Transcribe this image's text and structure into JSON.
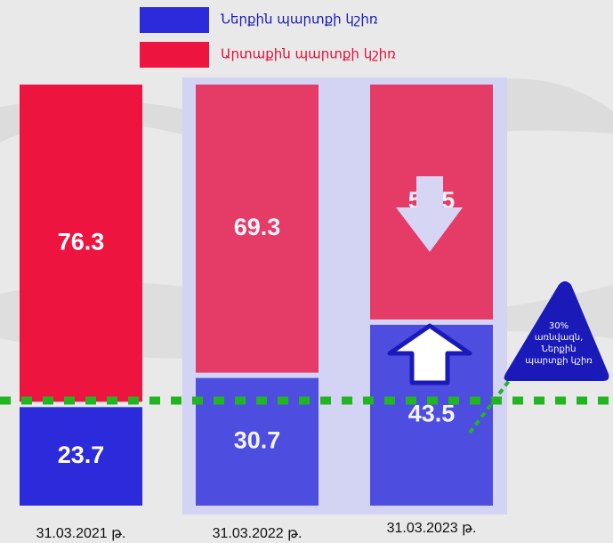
{
  "chart_data": {
    "type": "stacked-bar",
    "categories": [
      "31.03.2021 թ.",
      "31.03.2022 թ.",
      "31.03.2023 թ."
    ],
    "series": [
      {
        "name": "Ներքին պարտքի կշիռ",
        "color": "#2b2bdc",
        "values": [
          23.7,
          30.7,
          43.5
        ]
      },
      {
        "name": "Արտաքին պարտքի կշիռ",
        "color": "#ee1440",
        "values": [
          76.3,
          69.3,
          56.5
        ]
      }
    ],
    "annotation": [
      "30%",
      "առնվազն,",
      "Ներքին",
      "պարտքի կշիռ"
    ]
  }
}
